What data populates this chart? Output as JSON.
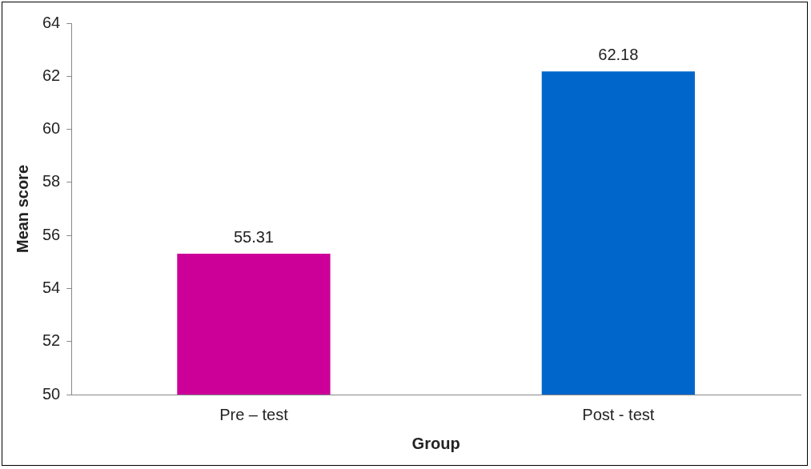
{
  "chart_data": {
    "type": "bar",
    "xlabel": "Group",
    "ylabel": "Mean score",
    "categories": [
      "Pre – test",
      "Post - test"
    ],
    "values": [
      55.31,
      62.18
    ],
    "colors": [
      "#cc0099",
      "#0066cc"
    ],
    "ylim": [
      50,
      64
    ],
    "yticks": [
      50,
      52,
      54,
      56,
      58,
      60,
      62,
      64
    ],
    "grid": false,
    "legend": false,
    "data_labels": true
  }
}
